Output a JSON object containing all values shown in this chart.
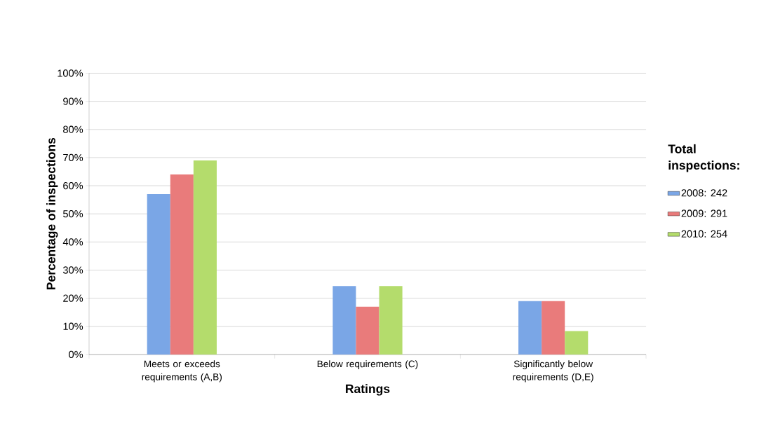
{
  "chart_data": {
    "type": "bar",
    "xlabel": "Ratings",
    "ylabel": "Percentage of inspections",
    "legend_title": "Total inspections:",
    "categories": [
      "Meets or exceeds requirements (A,B)",
      "Below requirements (C)",
      "Significantly below requirements (D,E)"
    ],
    "series": [
      {
        "name": "2008: 242",
        "color": "#7aa6e6",
        "values": [
          57,
          24.3,
          19
        ]
      },
      {
        "name": "2009: 291",
        "color": "#e97b7b",
        "values": [
          64,
          17,
          19
        ]
      },
      {
        "name": "2010: 254",
        "color": "#b4dc6c",
        "values": [
          69,
          24.3,
          8.3
        ]
      }
    ],
    "ylim": [
      0,
      100
    ],
    "yticks": [
      {
        "value": 0,
        "label": "0%"
      },
      {
        "value": 10,
        "label": "10%"
      },
      {
        "value": 20,
        "label": "20%"
      },
      {
        "value": 30,
        "label": "30%"
      },
      {
        "value": 40,
        "label": "40%"
      },
      {
        "value": 50,
        "label": "50%"
      },
      {
        "value": 60,
        "label": "60%"
      },
      {
        "value": 70,
        "label": "70%"
      },
      {
        "value": 80,
        "label": "80%"
      },
      {
        "value": 90,
        "label": "90%"
      },
      {
        "value": 100,
        "label": "100%"
      }
    ],
    "grid": "y",
    "legend": "right"
  }
}
